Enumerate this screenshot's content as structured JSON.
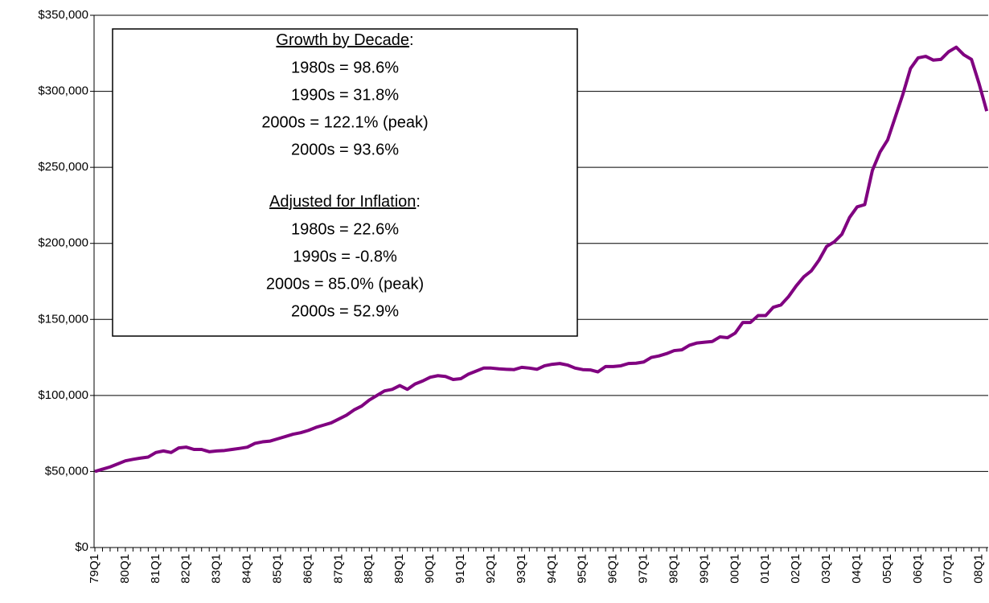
{
  "chart_data": {
    "type": "line",
    "categories": [
      "79Q1",
      null,
      null,
      null,
      "80Q1",
      null,
      null,
      null,
      "81Q1",
      null,
      null,
      null,
      "82Q1",
      null,
      null,
      null,
      "83Q1",
      null,
      null,
      null,
      "84Q1",
      null,
      null,
      null,
      "85Q1",
      null,
      null,
      null,
      "86Q1",
      null,
      null,
      null,
      "87Q1",
      null,
      null,
      null,
      "88Q1",
      null,
      null,
      null,
      "89Q1",
      null,
      null,
      null,
      "90Q1",
      null,
      null,
      null,
      "91Q1",
      null,
      null,
      null,
      "92Q1",
      null,
      null,
      null,
      "93Q1",
      null,
      null,
      null,
      "94Q1",
      null,
      null,
      null,
      "95Q1",
      null,
      null,
      null,
      "96Q1",
      null,
      null,
      null,
      "97Q1",
      null,
      null,
      null,
      "98Q1",
      null,
      null,
      null,
      "99Q1",
      null,
      null,
      null,
      "00Q1",
      null,
      null,
      null,
      "01Q1",
      null,
      null,
      null,
      "02Q1",
      null,
      null,
      null,
      "03Q1",
      null,
      null,
      null,
      "04Q1",
      null,
      null,
      null,
      "05Q1",
      null,
      null,
      null,
      "06Q1",
      null,
      null,
      null,
      "07Q1",
      null,
      null,
      null,
      "08Q1",
      null
    ],
    "values": [
      50000,
      51500,
      53000,
      55000,
      57000,
      58000,
      58800,
      59500,
      62500,
      63500,
      62500,
      65500,
      66000,
      64500,
      64500,
      63000,
      63500,
      63800,
      64500,
      65200,
      66000,
      68500,
      69500,
      70000,
      71500,
      73000,
      74500,
      75500,
      77000,
      79000,
      80500,
      82000,
      84500,
      87000,
      90500,
      93000,
      97000,
      100000,
      103000,
      104000,
      106500,
      104000,
      107500,
      109500,
      112000,
      113000,
      112500,
      110500,
      111000,
      114000,
      116000,
      118000,
      118000,
      117500,
      117200,
      117000,
      118500,
      118000,
      117200,
      119500,
      120500,
      121000,
      120000,
      118000,
      117000,
      116800,
      115500,
      119000,
      119000,
      119500,
      121000,
      121200,
      122000,
      125000,
      126000,
      127500,
      129500,
      130000,
      133000,
      134500,
      135000,
      135500,
      138500,
      138000,
      141000,
      148000,
      148000,
      152500,
      152500,
      158000,
      159500,
      165000,
      172000,
      178000,
      182000,
      189000,
      198000,
      201000,
      206000,
      217000,
      224000,
      225500,
      248000,
      260000,
      268000,
      283000,
      298000,
      315000,
      322000,
      323000,
      320500,
      321000,
      326000,
      329000,
      324000,
      321000,
      305000,
      287000
    ],
    "color": "#800080",
    "ylim": [
      0,
      350000
    ],
    "yticks": [
      {
        "value": 0,
        "label": "$0"
      },
      {
        "value": 50000,
        "label": "$50,000"
      },
      {
        "value": 100000,
        "label": "$100,000"
      },
      {
        "value": 150000,
        "label": "$150,000"
      },
      {
        "value": 200000,
        "label": "$200,000"
      },
      {
        "value": 250000,
        "label": "$250,000"
      },
      {
        "value": 300000,
        "label": "$300,000"
      },
      {
        "value": 350000,
        "label": "$350,000"
      }
    ],
    "grid": true,
    "annotation": {
      "sections": [
        {
          "heading": [
            "Growth by Decade",
            ":"
          ],
          "lines": [
            "1980s = 98.6%",
            "1990s = 31.8%",
            "2000s = 122.1% (peak)",
            "2000s = 93.6%"
          ]
        },
        {
          "heading": [
            "Adjusted for Inflation",
            ":"
          ],
          "lines": [
            "1980s = 22.6%",
            "1990s = -0.8%",
            "2000s = 85.0% (peak)",
            "2000s = 52.9%"
          ]
        }
      ]
    }
  }
}
